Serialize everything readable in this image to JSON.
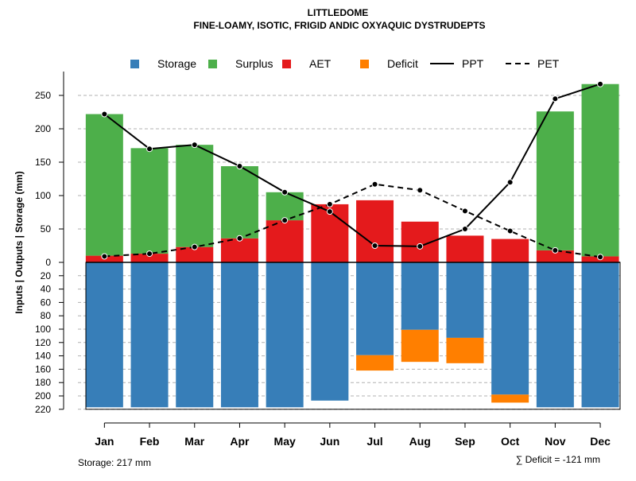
{
  "chart_data": {
    "type": "bar",
    "title": "LITTLEDOME",
    "subtitle": "FINE-LOAMY, ISOTIC, FRIGID ANDIC OXYAQUIC DYSTRUDEPTS",
    "ylabel": "Inputs | Outputs | Storage    (mm)",
    "xlabel": "",
    "categories": [
      "Jan",
      "Feb",
      "Mar",
      "Apr",
      "May",
      "Jun",
      "Jul",
      "Aug",
      "Sep",
      "Oct",
      "Nov",
      "Dec"
    ],
    "upper_ylim": [
      0,
      270
    ],
    "upper_yticks": [
      0,
      50,
      100,
      150,
      200,
      250
    ],
    "lower_ylim": [
      0,
      220
    ],
    "lower_yticks": [
      20,
      40,
      60,
      80,
      100,
      120,
      140,
      160,
      180,
      200,
      220
    ],
    "legend": [
      {
        "label": "Storage",
        "kind": "square",
        "color": "#377EB8"
      },
      {
        "label": "Surplus",
        "kind": "square",
        "color": "#4DAF4A"
      },
      {
        "label": "AET",
        "kind": "square",
        "color": "#E41A1C"
      },
      {
        "label": "Deficit",
        "kind": "square",
        "color": "#FF7F00"
      },
      {
        "label": "PPT",
        "kind": "line",
        "color": "#000000"
      },
      {
        "label": "PET",
        "kind": "dashed",
        "color": "#000000"
      }
    ],
    "series": [
      {
        "name": "AET",
        "color": "#E41A1C",
        "values": [
          10,
          13,
          23,
          36,
          63,
          87,
          93,
          61,
          40,
          35,
          18,
          9
        ]
      },
      {
        "name": "Surplus",
        "color": "#4DAF4A",
        "values": [
          212,
          158,
          153,
          108,
          42,
          0,
          0,
          0,
          0,
          0,
          208,
          258
        ]
      },
      {
        "name": "Storage",
        "color": "#377EB8",
        "values": [
          217,
          217,
          217,
          217,
          217,
          207,
          139,
          101,
          113,
          198,
          217,
          217
        ]
      },
      {
        "name": "Deficit",
        "color": "#FF7F00",
        "values": [
          0,
          0,
          0,
          0,
          0,
          0,
          23,
          48,
          38,
          12,
          0,
          0
        ]
      },
      {
        "name": "PPT",
        "color": "#000000",
        "values": [
          222,
          170,
          176,
          144,
          105,
          76,
          25,
          24,
          50,
          120,
          245,
          267
        ]
      },
      {
        "name": "PET",
        "color": "#000000",
        "values": [
          9,
          13,
          23,
          36,
          63,
          87,
          117,
          108,
          77,
          47,
          18,
          8
        ]
      }
    ],
    "annotations": {
      "storage": "Storage: 217 mm",
      "deficit": "∑ Deficit = -121 mm"
    }
  }
}
